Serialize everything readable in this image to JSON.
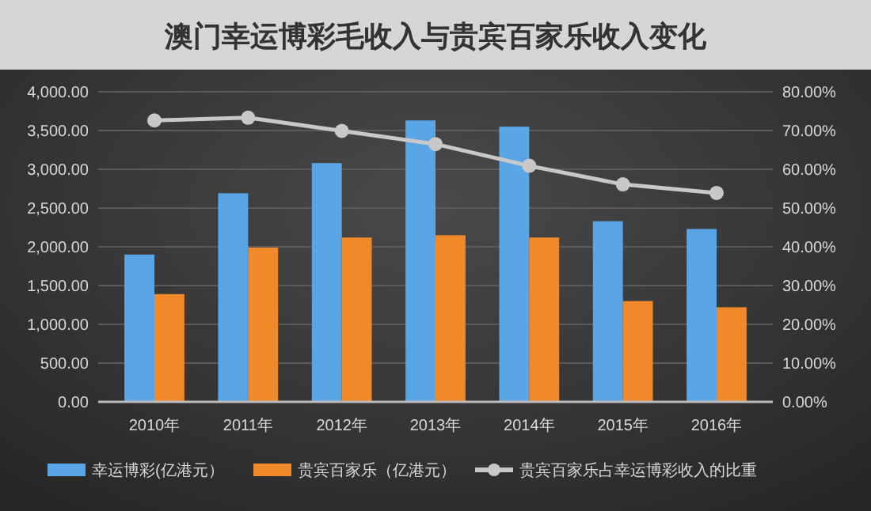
{
  "chart_data": {
    "type": "bar",
    "title": "澳门幸运博彩毛收入与贵宾百家乐收入变化",
    "categories": [
      "2010年",
      "2011年",
      "2012年",
      "2013年",
      "2014年",
      "2015年",
      "2016年"
    ],
    "series": [
      {
        "name": "幸运博彩(亿港元）",
        "color": "#5aa5e6",
        "values": [
          1900,
          2690,
          3080,
          3630,
          3550,
          2330,
          2230
        ]
      },
      {
        "name": "贵宾百家乐（亿港元）",
        "color": "#f0892a",
        "values": [
          1390,
          1990,
          2120,
          2150,
          2120,
          1300,
          1220
        ]
      },
      {
        "name": "贵宾百家乐占幸运博彩收入的比重",
        "type": "line",
        "axis": "y2",
        "color": "#c8c8c8",
        "values": [
          72.6,
          73.3,
          69.9,
          66.5,
          60.9,
          56.1,
          53.9
        ]
      }
    ],
    "ylim": [
      0,
      4000
    ],
    "yticks": [
      {
        "value": 0,
        "label": "0.00"
      },
      {
        "value": 500,
        "label": "500.00"
      },
      {
        "value": 1000,
        "label": "1,000.00"
      },
      {
        "value": 1500,
        "label": "1,500.00"
      },
      {
        "value": 2000,
        "label": "2,000.00"
      },
      {
        "value": 2500,
        "label": "2,500.00"
      },
      {
        "value": 3000,
        "label": "3,000.00"
      },
      {
        "value": 3500,
        "label": "3,500.00"
      },
      {
        "value": 4000,
        "label": "4,000.00"
      }
    ],
    "y2lim": [
      0,
      80
    ],
    "y2ticks": [
      {
        "value": 0,
        "label": "0.00%"
      },
      {
        "value": 10,
        "label": "10.00%"
      },
      {
        "value": 20,
        "label": "20.00%"
      },
      {
        "value": 30,
        "label": "30.00%"
      },
      {
        "value": 40,
        "label": "40.00%"
      },
      {
        "value": 50,
        "label": "50.00%"
      },
      {
        "value": 60,
        "label": "60.00%"
      },
      {
        "value": 70,
        "label": "70.00%"
      },
      {
        "value": 80,
        "label": "80.00%"
      }
    ],
    "grid": "y",
    "legend": "bottom",
    "marker": "circle"
  }
}
